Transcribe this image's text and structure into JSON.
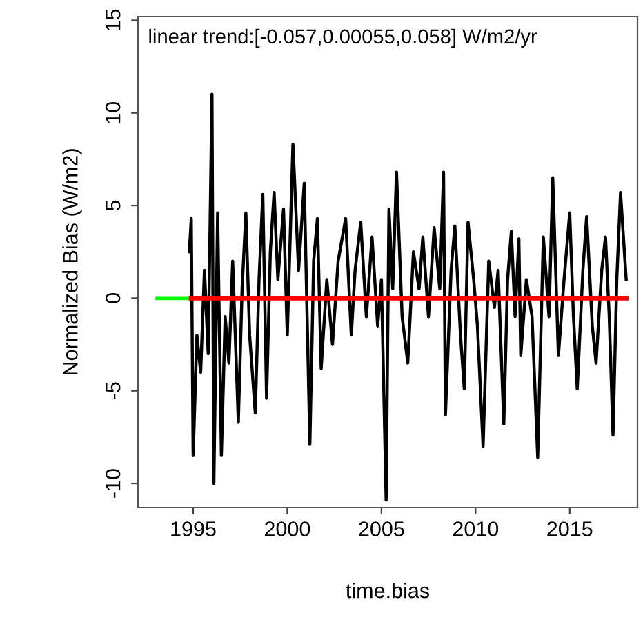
{
  "chart_data": {
    "type": "line",
    "title": "linear trend:[-0.057,0.00055,0.058] W/m2/yr",
    "xlabel": "time.bias",
    "ylabel": "Normalized Bias (W/m2)",
    "xlim": [
      1992.07,
      2018.6
    ],
    "ylim": [
      -11.3,
      15.2
    ],
    "xticks": [
      1995,
      2000,
      2005,
      2010,
      2015
    ],
    "yticks": [
      -10,
      -5,
      0,
      5,
      10,
      {
        "value": 15,
        "label": "15"
      }
    ],
    "grid": false,
    "legend": false,
    "marker": "none",
    "line_style": "solid",
    "series": [
      {
        "color": "#000000",
        "x": [
          1994.8,
          1994.9,
          1995.0,
          1995.2,
          1995.4,
          1995.6,
          1995.8,
          1996.0,
          1996.1,
          1996.3,
          1996.5,
          1996.7,
          1996.9,
          1997.1,
          1997.4,
          1997.6,
          1997.8,
          1998.0,
          1998.3,
          1998.5,
          1998.7,
          1998.9,
          1999.1,
          1999.3,
          1999.5,
          1999.8,
          2000.0,
          2000.3,
          2000.6,
          2000.9,
          2001.2,
          2001.4,
          2001.6,
          2001.8,
          2002.1,
          2002.4,
          2002.7,
          2003.1,
          2003.4,
          2003.6,
          2003.9,
          2004.2,
          2004.5,
          2004.8,
          2005.0,
          2005.25,
          2005.4,
          2005.6,
          2005.8,
          2006.1,
          2006.4,
          2006.7,
          2007.0,
          2007.2,
          2007.5,
          2007.8,
          2008.1,
          2008.3,
          2008.4,
          2008.7,
          2008.9,
          2009.2,
          2009.4,
          2009.6,
          2009.9,
          2010.1,
          2010.4,
          2010.7,
          2011.0,
          2011.2,
          2011.5,
          2011.7,
          2011.9,
          2012.1,
          2012.3,
          2012.4,
          2012.7,
          2013.0,
          2013.3,
          2013.6,
          2013.9,
          2014.1,
          2014.4,
          2014.7,
          2015.0,
          2015.2,
          2015.4,
          2015.7,
          2015.9,
          2016.2,
          2016.4,
          2016.7,
          2016.9,
          2017.1,
          2017.3,
          2017.5,
          2017.7,
          2018.0
        ],
        "values": [
          2.5,
          4.3,
          -8.5,
          -2.0,
          -4.0,
          1.5,
          -3.0,
          11.0,
          -10.0,
          4.6,
          -8.5,
          -1.0,
          -3.5,
          2.0,
          -6.7,
          0.5,
          4.6,
          -2.0,
          -6.2,
          1.0,
          5.6,
          -5.4,
          2.5,
          5.7,
          1.0,
          4.8,
          -2.0,
          8.3,
          1.5,
          6.2,
          -7.9,
          2.0,
          4.3,
          -3.8,
          1.0,
          -2.5,
          2.0,
          4.3,
          -2.0,
          1.5,
          4.1,
          -1.0,
          3.3,
          -1.5,
          1.0,
          -10.9,
          4.8,
          0.5,
          6.8,
          -1.0,
          -3.5,
          2.5,
          0.5,
          3.3,
          -1.0,
          3.8,
          0.5,
          6.8,
          -6.3,
          1.5,
          3.9,
          -2.0,
          -4.9,
          4.1,
          1.0,
          -1.5,
          -8.0,
          2.0,
          -0.5,
          1.5,
          -6.8,
          1.0,
          3.6,
          -1.0,
          3.2,
          -3.1,
          1.0,
          -1.0,
          -8.6,
          3.3,
          -1.0,
          6.5,
          -3.1,
          1.0,
          4.6,
          -1.0,
          -4.9,
          1.5,
          4.4,
          -1.5,
          -3.5,
          1.5,
          3.3,
          -1.0,
          -7.4,
          1.0,
          5.7,
          1.0
        ]
      },
      {
        "color": "#00ff00",
        "x": [
          1993.1,
          1995.0
        ],
        "values": [
          0,
          0
        ]
      },
      {
        "color": "#ff0000",
        "x": [
          1994.9,
          2018.0
        ],
        "values": [
          0,
          0
        ]
      }
    ]
  }
}
